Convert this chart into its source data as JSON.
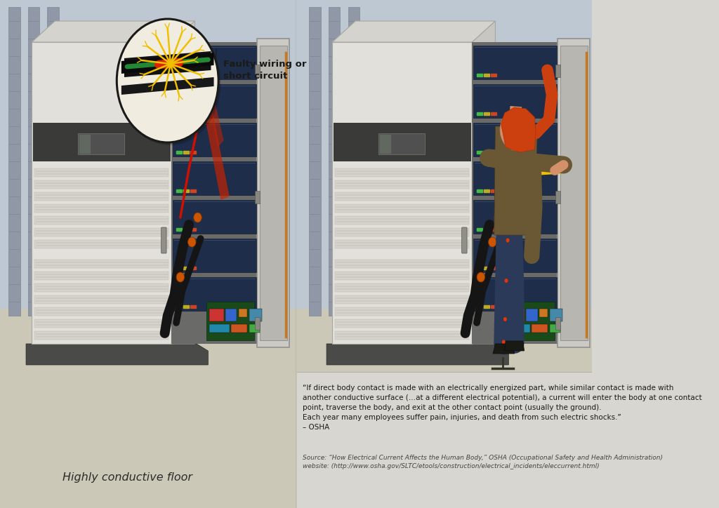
{
  "bg_color": "#d8d6d0",
  "wall_top_color": "#bec8d2",
  "floor_color": "#ccc8b8",
  "title_left": "Highly conductive floor",
  "faulty_label": "Faulty wiring or\nshort circuit",
  "quote_line1": "“If direct body contact is made with an electrically energized part, while similar contact is made with",
  "quote_line2": "another conductive surface (…at a different electrical potential), a current will enter the body at one contact",
  "quote_line3": "point, traverse the body, and exit at the other contact point (usually the ground).",
  "quote_line4": "Each year many employees suffer pain, injuries, and death from such electric shocks.”",
  "quote_line5": "– OSHA",
  "source_line1": "Source: “How Electrical Current Affects the Human Body,” OSHA (Occupational Safety and Health Administration)",
  "source_line2": "website: (http://www.osha.gov/SLTC/etools/construction/electrical_incidents/eleccurrent.html)",
  "cabinet_front": "#e2e0da",
  "cabinet_side": "#c8c6c0",
  "cabinet_top_face": "#d5d3cd",
  "cabinet_dark_strip": "#3a3a38",
  "cabinet_base": "#4a4a48",
  "cabinet_edge": "#a8a6a0",
  "interior_bg": "#6a6a68",
  "shelf_color": "#1e2d4a",
  "shelf_light": "#3a4a6a",
  "circuit_bg": "#1a4a1a",
  "door_outer": "#cccac4",
  "door_inner": "#b8b6b0",
  "hinge_color": "#888880",
  "wire_orange": "#c87820",
  "wire_black": "#151515",
  "wire_red": "#cc1100",
  "yellow_current": "#f0c000",
  "red_sparks": "#dd2200",
  "skin_color": "#d4906a",
  "hair_color": "#cc4010",
  "jacket_color": "#6a5835",
  "pants_color": "#2a3a58",
  "shoe_color": "#1a1a15",
  "ground_color": "#333328",
  "col_color": "#9098a8",
  "text_dark": "#1a1a18",
  "text_source": "#444440",
  "callout_bg": "#f0ece0"
}
